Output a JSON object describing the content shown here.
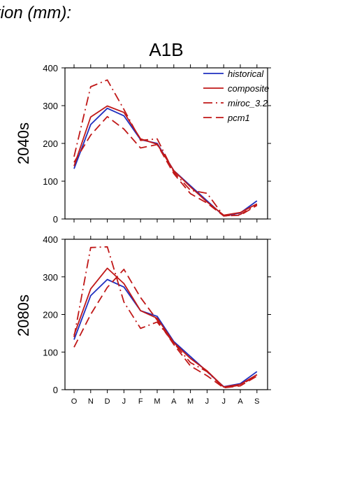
{
  "figure": {
    "headline": "tion (mm):",
    "scenario": "A1B"
  },
  "colors": {
    "historical": "#1f2fbf",
    "model": "#c01818"
  },
  "chart_data": [
    {
      "type": "line",
      "row_label": "2040s",
      "x": [
        "O",
        "N",
        "D",
        "J",
        "F",
        "M",
        "A",
        "M",
        "J",
        "J",
        "A",
        "S"
      ],
      "ylim": [
        0,
        400
      ],
      "yticks": [
        0,
        100,
        200,
        300,
        400
      ],
      "grid": false,
      "legend": "top-right",
      "series": [
        {
          "name": "historical",
          "style": "solid",
          "color": "#1f2fbf",
          "values": [
            133,
            250,
            293,
            273,
            210,
            200,
            128,
            88,
            48,
            8,
            16,
            48
          ]
        },
        {
          "name": "composite",
          "style": "solid",
          "color": "#c01818",
          "values": [
            140,
            270,
            299,
            282,
            212,
            198,
            128,
            85,
            45,
            10,
            17,
            40
          ]
        },
        {
          "name": "miroc_3.2",
          "style": "dashdot",
          "color": "#c01818",
          "values": [
            165,
            350,
            368,
            290,
            208,
            212,
            124,
            76,
            68,
            8,
            12,
            38
          ]
        },
        {
          "name": "pcm1",
          "style": "dashed",
          "color": "#c01818",
          "values": [
            150,
            222,
            271,
            238,
            188,
            197,
            120,
            67,
            42,
            8,
            10,
            36
          ]
        }
      ]
    },
    {
      "type": "line",
      "row_label": "2080s",
      "x": [
        "O",
        "N",
        "D",
        "J",
        "F",
        "M",
        "A",
        "M",
        "J",
        "J",
        "A",
        "S"
      ],
      "ylim": [
        0,
        400
      ],
      "yticks": [
        0,
        100,
        200,
        300,
        400
      ],
      "grid": false,
      "series": [
        {
          "name": "historical",
          "style": "solid",
          "color": "#1f2fbf",
          "values": [
            133,
            250,
            293,
            273,
            210,
            195,
            128,
            88,
            48,
            8,
            16,
            48
          ]
        },
        {
          "name": "composite",
          "style": "solid",
          "color": "#c01818",
          "values": [
            145,
            268,
            323,
            282,
            210,
            190,
            125,
            83,
            50,
            7,
            14,
            40
          ]
        },
        {
          "name": "miroc_3.2",
          "style": "dashdot",
          "color": "#c01818",
          "values": [
            140,
            378,
            380,
            233,
            163,
            180,
            124,
            72,
            48,
            5,
            12,
            38
          ]
        },
        {
          "name": "pcm1",
          "style": "dashed",
          "color": "#c01818",
          "values": [
            113,
            200,
            272,
            320,
            245,
            185,
            120,
            63,
            37,
            5,
            10,
            36
          ]
        }
      ]
    }
  ]
}
